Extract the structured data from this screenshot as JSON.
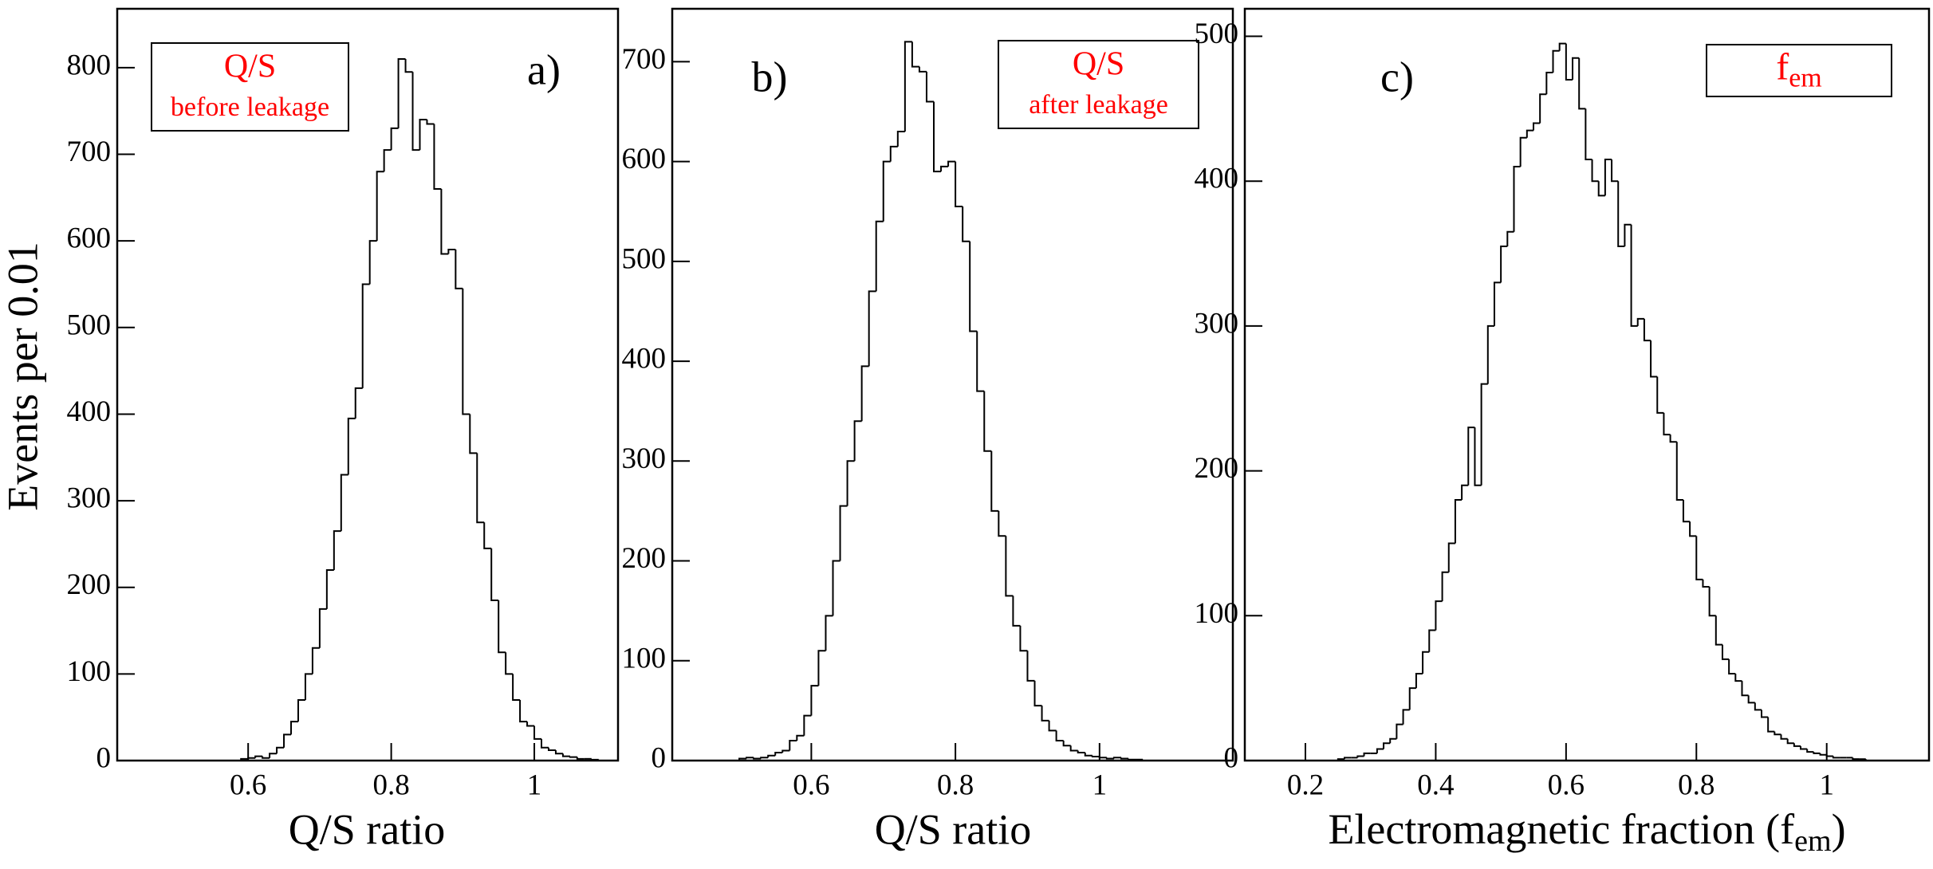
{
  "chart_data": [
    {
      "type": "histogram",
      "panel_label": "a)",
      "legend": [
        "Q/S",
        "before leakage"
      ],
      "ylabel": "Events per 0.01",
      "xlabel": "Q/S ratio",
      "color": "#000000",
      "legend_color": "#ff0000",
      "bins": [
        0.58,
        0.59,
        0.6,
        0.61,
        0.62,
        0.63,
        0.64,
        0.65,
        0.66,
        0.67,
        0.68,
        0.69,
        0.7,
        0.71,
        0.72,
        0.73,
        0.74,
        0.75,
        0.76,
        0.77,
        0.78,
        0.79,
        0.8,
        0.81,
        0.82,
        0.83,
        0.84,
        0.85,
        0.86,
        0.87,
        0.88,
        0.89,
        0.9,
        0.91,
        0.92,
        0.93,
        0.94,
        0.95,
        0.96,
        0.97,
        0.98,
        0.99,
        1.0,
        1.01,
        1.02,
        1.03,
        1.04,
        1.05,
        1.06,
        1.07,
        1.08,
        1.09,
        1.1
      ],
      "values": [
        0,
        2,
        3,
        5,
        3,
        8,
        15,
        30,
        45,
        70,
        100,
        130,
        175,
        220,
        265,
        330,
        395,
        430,
        550,
        600,
        680,
        705,
        730,
        810,
        795,
        705,
        740,
        735,
        660,
        585,
        590,
        545,
        400,
        355,
        275,
        245,
        185,
        125,
        100,
        70,
        45,
        40,
        25,
        15,
        12,
        8,
        5,
        4,
        2,
        2,
        1,
        0
      ],
      "xlim": [
        0.417,
        1.117
      ],
      "ylim": [
        0,
        868
      ],
      "xticks": [
        0.6,
        0.8,
        1
      ],
      "yticks": [
        0,
        100,
        200,
        300,
        400,
        500,
        600,
        700,
        800
      ]
    },
    {
      "type": "histogram",
      "panel_label": "b)",
      "legend": [
        "Q/S",
        "after leakage"
      ],
      "xlabel": "Q/S ratio",
      "color": "#000000",
      "legend_color": "#ff0000",
      "bins": [
        0.5,
        0.51,
        0.52,
        0.53,
        0.54,
        0.55,
        0.56,
        0.57,
        0.58,
        0.59,
        0.6,
        0.61,
        0.62,
        0.63,
        0.64,
        0.65,
        0.66,
        0.67,
        0.68,
        0.69,
        0.7,
        0.71,
        0.72,
        0.73,
        0.74,
        0.75,
        0.76,
        0.77,
        0.78,
        0.79,
        0.8,
        0.81,
        0.82,
        0.83,
        0.84,
        0.85,
        0.86,
        0.87,
        0.88,
        0.89,
        0.9,
        0.91,
        0.92,
        0.93,
        0.94,
        0.95,
        0.96,
        0.97,
        0.98,
        0.99,
        1.0,
        1.01,
        1.02,
        1.03,
        1.04,
        1.05,
        1.06,
        1.07
      ],
      "values": [
        2,
        3,
        2,
        3,
        5,
        8,
        10,
        20,
        25,
        45,
        75,
        110,
        145,
        200,
        255,
        300,
        340,
        395,
        470,
        540,
        600,
        615,
        630,
        720,
        695,
        690,
        660,
        590,
        595,
        600,
        555,
        520,
        430,
        370,
        310,
        250,
        225,
        165,
        135,
        110,
        80,
        55,
        40,
        30,
        20,
        15,
        10,
        8,
        5,
        4,
        3,
        2,
        3,
        2,
        1,
        1,
        0
      ],
      "xlim": [
        0.407,
        1.185
      ],
      "ylim": [
        0,
        753
      ],
      "xticks": [
        0.6,
        0.8,
        1
      ],
      "yticks": [
        0,
        100,
        200,
        300,
        400,
        500,
        600,
        700
      ]
    },
    {
      "type": "histogram",
      "panel_label": "c)",
      "legend_label": [
        "f",
        "em"
      ],
      "xlabel": [
        "Electromagnetic fraction (f",
        "em",
        ")"
      ],
      "color": "#000000",
      "legend_color": "#ff0000",
      "bins": [
        0.25,
        0.26,
        0.27,
        0.28,
        0.29,
        0.3,
        0.31,
        0.32,
        0.33,
        0.34,
        0.35,
        0.36,
        0.37,
        0.38,
        0.39,
        0.4,
        0.41,
        0.42,
        0.43,
        0.44,
        0.45,
        0.46,
        0.47,
        0.48,
        0.49,
        0.5,
        0.51,
        0.52,
        0.53,
        0.54,
        0.55,
        0.56,
        0.57,
        0.58,
        0.59,
        0.6,
        0.61,
        0.62,
        0.63,
        0.64,
        0.65,
        0.66,
        0.67,
        0.68,
        0.69,
        0.7,
        0.71,
        0.72,
        0.73,
        0.74,
        0.75,
        0.76,
        0.77,
        0.78,
        0.79,
        0.8,
        0.81,
        0.82,
        0.83,
        0.84,
        0.85,
        0.86,
        0.87,
        0.88,
        0.89,
        0.9,
        0.91,
        0.92,
        0.93,
        0.94,
        0.95,
        0.96,
        0.97,
        0.98,
        0.99,
        1.0,
        1.01,
        1.02,
        1.03,
        1.04,
        1.05,
        1.06,
        1.07
      ],
      "values": [
        1,
        2,
        2,
        3,
        5,
        5,
        8,
        12,
        15,
        25,
        35,
        50,
        60,
        75,
        90,
        110,
        130,
        150,
        180,
        190,
        230,
        190,
        260,
        300,
        330,
        355,
        365,
        410,
        430,
        435,
        440,
        460,
        475,
        490,
        495,
        470,
        485,
        450,
        415,
        400,
        390,
        415,
        400,
        355,
        370,
        300,
        305,
        290,
        265,
        240,
        225,
        220,
        180,
        165,
        155,
        125,
        120,
        100,
        80,
        70,
        60,
        55,
        45,
        40,
        35,
        30,
        20,
        18,
        15,
        12,
        10,
        8,
        6,
        5,
        4,
        3,
        2,
        2,
        2,
        1,
        1,
        0
      ],
      "xlim": [
        0.107,
        1.157
      ],
      "ylim": [
        0,
        519
      ],
      "xticks": [
        0.2,
        0.4,
        0.6,
        0.8,
        1
      ],
      "yticks": [
        0,
        100,
        200,
        300,
        400,
        500
      ]
    }
  ]
}
